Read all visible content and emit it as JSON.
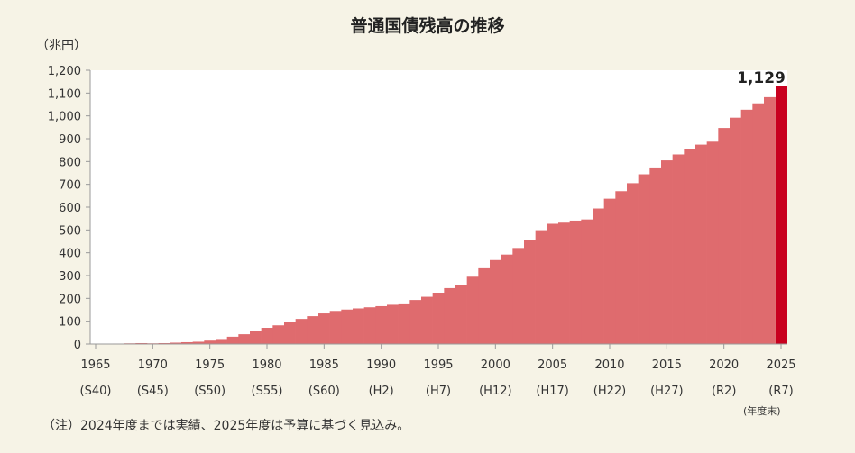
{
  "chart_data": {
    "type": "bar",
    "title": "普通国債残高の推移",
    "ylabel": "（兆円）",
    "ylim": [
      0,
      1200
    ],
    "yticks": [
      "0",
      "100",
      "200",
      "300",
      "400",
      "500",
      "600",
      "700",
      "800",
      "900",
      "1,000",
      "1,100",
      "1,200"
    ],
    "xticks": [
      "1965",
      "1970",
      "1975",
      "1980",
      "1985",
      "1990",
      "1995",
      "2000",
      "2005",
      "2010",
      "2015",
      "2020",
      "2025"
    ],
    "era_ticks": [
      "(S40)",
      "(S45)",
      "(S50)",
      "(S55)",
      "(S60)",
      "(H2)",
      "(H7)",
      "(H12)",
      "(H17)",
      "(H22)",
      "(H27)",
      "(R2)",
      "(R7)"
    ],
    "x_end_label": "(年度末)",
    "categories": [
      1965,
      1966,
      1967,
      1968,
      1969,
      1970,
      1971,
      1972,
      1973,
      1974,
      1975,
      1976,
      1977,
      1978,
      1979,
      1980,
      1981,
      1982,
      1983,
      1984,
      1985,
      1986,
      1987,
      1988,
      1989,
      1990,
      1991,
      1992,
      1993,
      1994,
      1995,
      1996,
      1997,
      1998,
      1999,
      2000,
      2001,
      2002,
      2003,
      2004,
      2005,
      2006,
      2007,
      2008,
      2009,
      2010,
      2011,
      2012,
      2013,
      2014,
      2015,
      2016,
      2017,
      2018,
      2019,
      2020,
      2021,
      2022,
      2023,
      2024,
      2025
    ],
    "values": [
      0.2,
      1,
      2,
      3,
      4,
      3,
      4,
      6,
      8,
      10,
      15,
      22,
      32,
      43,
      56,
      71,
      82,
      96,
      110,
      122,
      134,
      145,
      151,
      156,
      161,
      166,
      172,
      178,
      193,
      207,
      225,
      245,
      258,
      295,
      332,
      368,
      392,
      421,
      457,
      499,
      527,
      532,
      541,
      546,
      594,
      637,
      670,
      705,
      744,
      774,
      805,
      831,
      853,
      874,
      887,
      947,
      992,
      1027,
      1055,
      1082,
      1129
    ],
    "highlight": {
      "category": 2025,
      "label": "1,129",
      "color": "#c8001e"
    },
    "bar_color": "#df6b6e",
    "grid": false
  },
  "note": "（注）2024年度までは実績、2025年度は予算に基づく見込み。"
}
